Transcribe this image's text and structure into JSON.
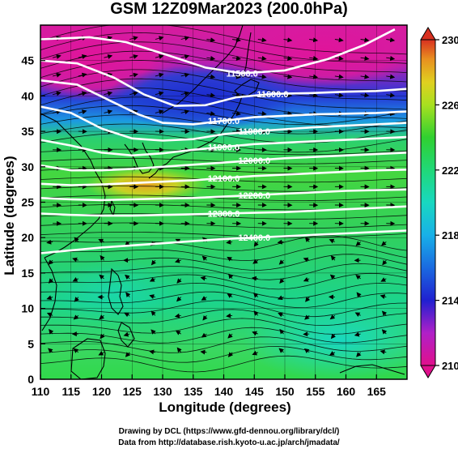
{
  "title": "GSM 12Z09Mar2023 (200.0hPa)",
  "xlabel": "Longitude (degrees)",
  "ylabel": "Latitude  (degrees)",
  "credits": [
    "Drawing by DCL (https://www.gfd-dennou.org/library/dcl/)",
    "Data from http://database.rish.kyoto-u.ac.jp/arch/jmadata/"
  ],
  "chart_data": {
    "type": "heatmap",
    "variables": [
      "temperature (shaded)",
      "geopotential height (contours)",
      "wind (streamlines/arrows)"
    ],
    "xlim": [
      110,
      170
    ],
    "ylim": [
      0,
      50
    ],
    "x_ticks": [
      "110",
      "115",
      "120",
      "125",
      "130",
      "135",
      "140",
      "145",
      "150",
      "155",
      "160",
      "165"
    ],
    "y_ticks": [
      "0",
      "5",
      "10",
      "15",
      "20",
      "25",
      "30",
      "35",
      "40",
      "45"
    ],
    "colorbar": {
      "min": 210,
      "max": 230,
      "tick_labels": [
        "210",
        "214",
        "218",
        "222",
        "226",
        "230"
      ],
      "colors": [
        "#e0108c",
        "#b020c8",
        "#2020d0",
        "#1a6ae0",
        "#18b0e8",
        "#18d8c0",
        "#20d878",
        "#30d030",
        "#a8e020",
        "#e0d020",
        "#e89020",
        "#d83020"
      ]
    },
    "contours": [
      {
        "label": "11500.0",
        "lon": [
          110,
          118,
          124,
          130,
          137,
          143,
          150,
          157,
          163,
          168
        ],
        "lat": [
          48,
          48.3,
          47.6,
          46,
          44,
          43.2,
          43.6,
          45.2,
          47.2,
          49.4
        ]
      },
      {
        "label": "11600.0",
        "lon": [
          110,
          116,
          122,
          127,
          132,
          137,
          142,
          148,
          154,
          160,
          165,
          170
        ],
        "lat": [
          45,
          44.6,
          42.6,
          40.2,
          38.6,
          38.7,
          39.8,
          40.3,
          40.4,
          40.6,
          40.7,
          41
        ]
      },
      {
        "label": "11700.0",
        "lon": [
          110,
          116,
          121,
          126,
          130,
          135,
          140,
          145,
          150,
          155,
          160,
          165,
          170
        ],
        "lat": [
          42.2,
          41.6,
          39.5,
          37.4,
          36.2,
          36,
          36.5,
          37,
          37.2,
          37.4,
          37.5,
          37.6,
          37.8
        ]
      },
      {
        "label": "11800.0",
        "lon": [
          110,
          115,
          120,
          125,
          130,
          135,
          140,
          145,
          150,
          155,
          160,
          165,
          170
        ],
        "lat": [
          38.5,
          37.6,
          35.4,
          34,
          33.7,
          33.9,
          34.6,
          35,
          35.3,
          35.6,
          35.8,
          36,
          36.2
        ]
      },
      {
        "label": "11900.0",
        "lon": [
          110,
          115,
          120,
          125,
          130,
          135,
          140,
          145,
          150,
          155,
          160,
          165,
          170
        ],
        "lat": [
          33.8,
          33,
          32,
          31.6,
          31.9,
          32.4,
          32.8,
          33.2,
          33.4,
          33.6,
          33.8,
          34,
          34.2
        ]
      },
      {
        "label": "12000.0",
        "lon": [
          110,
          115,
          120,
          125,
          130,
          135,
          140,
          145,
          150,
          155,
          160,
          165,
          170
        ],
        "lat": [
          30.2,
          29.5,
          29.5,
          29.7,
          30,
          30.3,
          30.6,
          30.9,
          31.2,
          31.4,
          31.6,
          31.8,
          32
        ]
      },
      {
        "label": "12100.0",
        "lon": [
          110,
          115,
          120,
          125,
          130,
          135,
          140,
          145,
          150,
          155,
          160,
          165,
          170
        ],
        "lat": [
          27.6,
          27.4,
          27.5,
          27.7,
          27.9,
          28.1,
          28.4,
          28.7,
          28.9,
          29.1,
          29.3,
          29.5,
          29.6
        ]
      },
      {
        "label": "12200.0",
        "lon": [
          110,
          115,
          120,
          125,
          130,
          135,
          140,
          145,
          150,
          155,
          160,
          165,
          170
        ],
        "lat": [
          25.6,
          25.4,
          25.3,
          25.4,
          25.5,
          25.6,
          25.8,
          26,
          26.2,
          26.4,
          26.6,
          26.7,
          26.8
        ]
      },
      {
        "label": "12300.0",
        "lon": [
          110,
          115,
          120,
          125,
          130,
          135,
          140,
          145,
          150,
          155,
          160,
          165,
          170
        ],
        "lat": [
          23.4,
          23.2,
          23.1,
          23.1,
          23.2,
          23.3,
          23.4,
          23.5,
          23.6,
          23.8,
          24,
          24.2,
          24.4
        ]
      },
      {
        "label": "12400.0",
        "lon": [
          110,
          115,
          120,
          125,
          130,
          135,
          140,
          145,
          150,
          155,
          160,
          165,
          170
        ],
        "lat": [
          17.8,
          18.2,
          18.6,
          18.9,
          19.2,
          19.5,
          19.8,
          20,
          20.2,
          20.4,
          20.6,
          20.8,
          21
        ]
      }
    ],
    "grid": true
  }
}
